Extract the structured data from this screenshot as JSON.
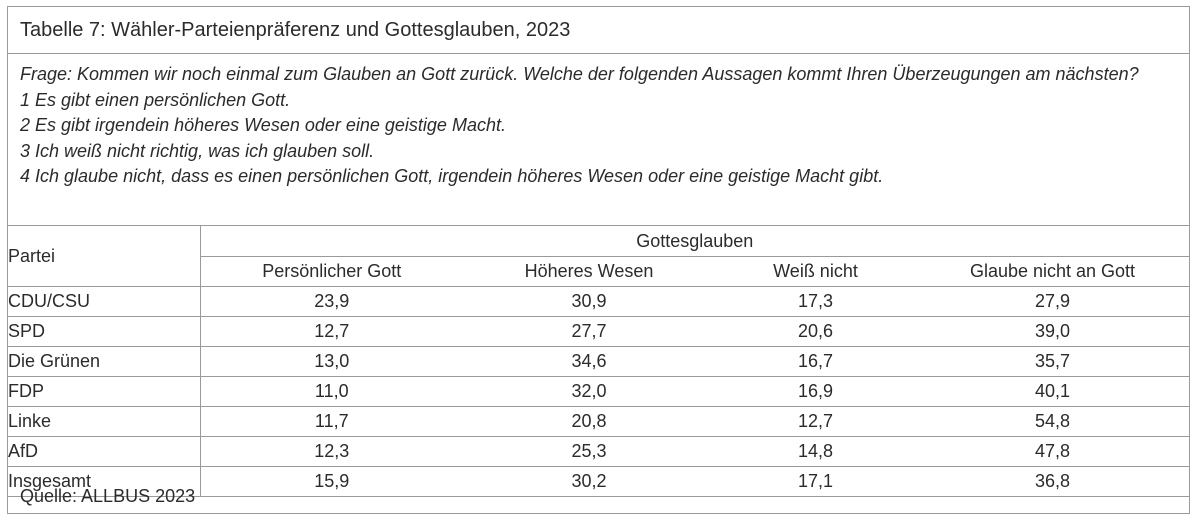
{
  "title": "Tabelle 7: Wähler-Parteienpräferenz und Gottesglauben, 2023",
  "question": {
    "main": "Frage: Kommen wir noch einmal zum Glauben an Gott zurück. Welche der folgenden Aussagen kommt Ihren Überzeugungen am nächsten?",
    "options": [
      "1 Es gibt einen persönlichen Gott.",
      "2 Es gibt irgendein höheres Wesen oder eine geistige Macht.",
      "3 Ich weiß nicht richtig, was ich glauben soll.",
      "4 Ich glaube nicht, dass es einen persönlichen Gott, irgendein höheres Wesen oder eine geistige Macht gibt."
    ]
  },
  "table": {
    "party_header": "Partei",
    "group_header": "Gottesglauben",
    "columns": [
      "Persönlicher Gott",
      "Höheres Wesen",
      "Weiß nicht",
      "Glaube nicht an Gott"
    ],
    "rows": [
      {
        "party": "CDU/CSU",
        "values": [
          "23,9",
          "30,9",
          "17,3",
          "27,9"
        ]
      },
      {
        "party": "SPD",
        "values": [
          "12,7",
          "27,7",
          "20,6",
          "39,0"
        ]
      },
      {
        "party": "Die Grünen",
        "values": [
          "13,0",
          "34,6",
          "16,7",
          "35,7"
        ]
      },
      {
        "party": "FDP",
        "values": [
          "11,0",
          "32,0",
          "16,9",
          "40,1"
        ]
      },
      {
        "party": "Linke",
        "values": [
          "11,7",
          "20,8",
          "12,7",
          "54,8"
        ]
      },
      {
        "party": "AfD",
        "values": [
          "12,3",
          "25,3",
          "14,8",
          "47,8"
        ]
      },
      {
        "party": "Insgesamt",
        "values": [
          "15,9",
          "30,2",
          "17,1",
          "36,8"
        ]
      }
    ]
  },
  "source": "Quelle: ALLBUS 2023"
}
